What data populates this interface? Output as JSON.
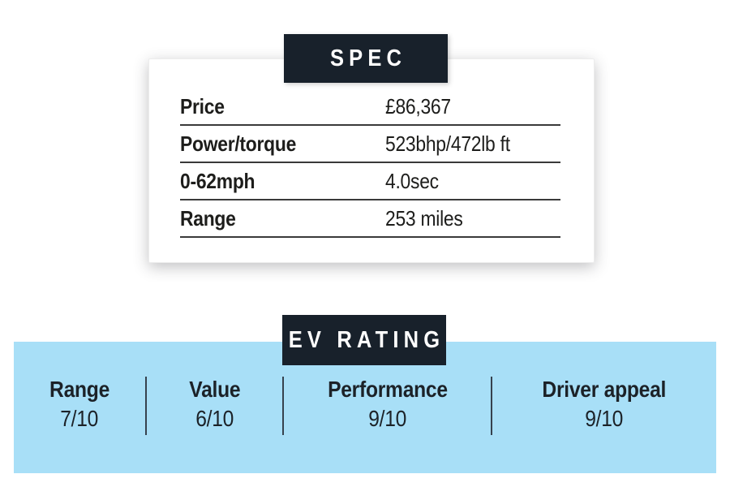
{
  "spec_card": {
    "title": "SPEC",
    "rows": [
      {
        "label": "Price",
        "value": "£86,367"
      },
      {
        "label": "Power/torque",
        "value": "523bhp/472lb ft"
      },
      {
        "label": "0-62mph",
        "value": "4.0sec"
      },
      {
        "label": "Range",
        "value": "253 miles"
      }
    ]
  },
  "ev_rating": {
    "title": "EV RATING",
    "items": [
      {
        "label": "Range",
        "score": "7/10"
      },
      {
        "label": "Value",
        "score": "6/10"
      },
      {
        "label": "Performance",
        "score": "9/10"
      },
      {
        "label": "Driver appeal",
        "score": "9/10"
      }
    ]
  },
  "colors": {
    "header_background": "#18212B",
    "header_text": "#FFFFFF",
    "panel_background": "#A8DFF7",
    "text": "#1D1D1B",
    "table_rule": "#3A3A3A",
    "column_divider": "#36424E"
  }
}
